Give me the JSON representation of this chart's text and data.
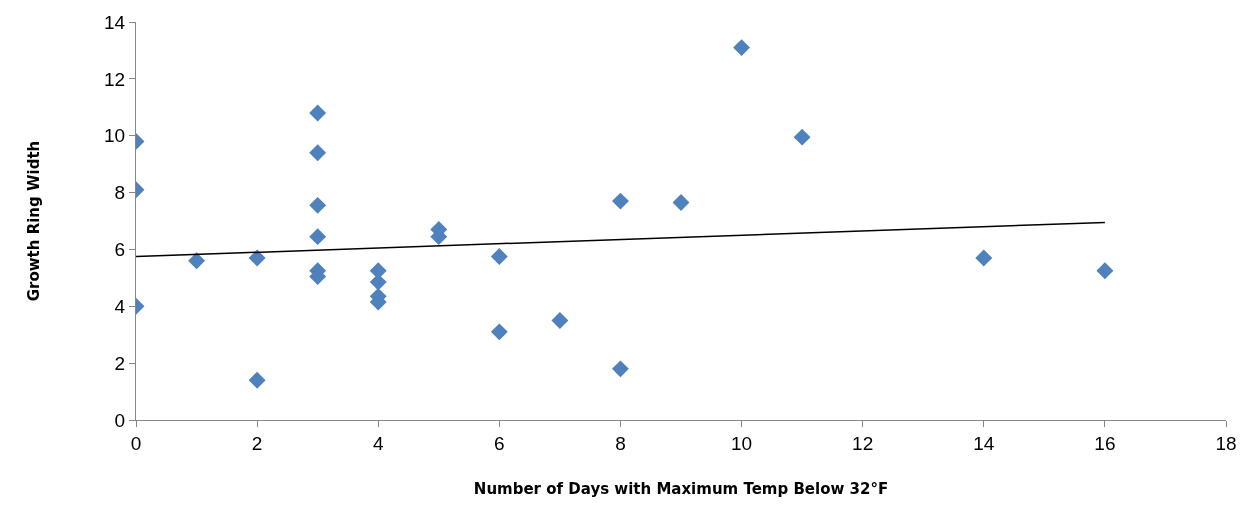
{
  "chart_data": {
    "type": "scatter",
    "xlabel": "Number of Days with Maximum Temp Below 32°F",
    "ylabel": "Growth Ring Width",
    "xlim": [
      0,
      18
    ],
    "xticks": [
      0,
      2,
      4,
      6,
      8,
      10,
      12,
      14,
      16,
      18
    ],
    "ylim": [
      0,
      14
    ],
    "yticks": [
      0,
      2,
      4,
      6,
      8,
      10,
      12,
      14
    ],
    "grid": false,
    "series": [
      {
        "marker": "diamond",
        "color": "#4f81bd",
        "x": [
          0,
          0,
          0,
          1,
          2,
          2,
          3,
          3,
          3,
          3,
          3,
          3,
          4,
          4,
          4,
          4,
          5,
          5,
          6,
          6,
          7,
          8,
          8,
          9,
          10,
          11,
          14,
          16
        ],
        "values": [
          9.8,
          8.1,
          4.0,
          5.6,
          5.7,
          1.4,
          10.8,
          9.4,
          7.55,
          6.45,
          5.25,
          5.05,
          5.25,
          4.85,
          4.35,
          4.15,
          6.7,
          6.45,
          5.75,
          3.1,
          3.5,
          7.7,
          1.8,
          7.65,
          13.1,
          9.95,
          5.7,
          5.25
        ]
      },
      {
        "type": "line",
        "marker": "none",
        "color": "#000000",
        "x": [
          0,
          16
        ],
        "values": [
          5.75,
          6.95
        ]
      }
    ]
  }
}
